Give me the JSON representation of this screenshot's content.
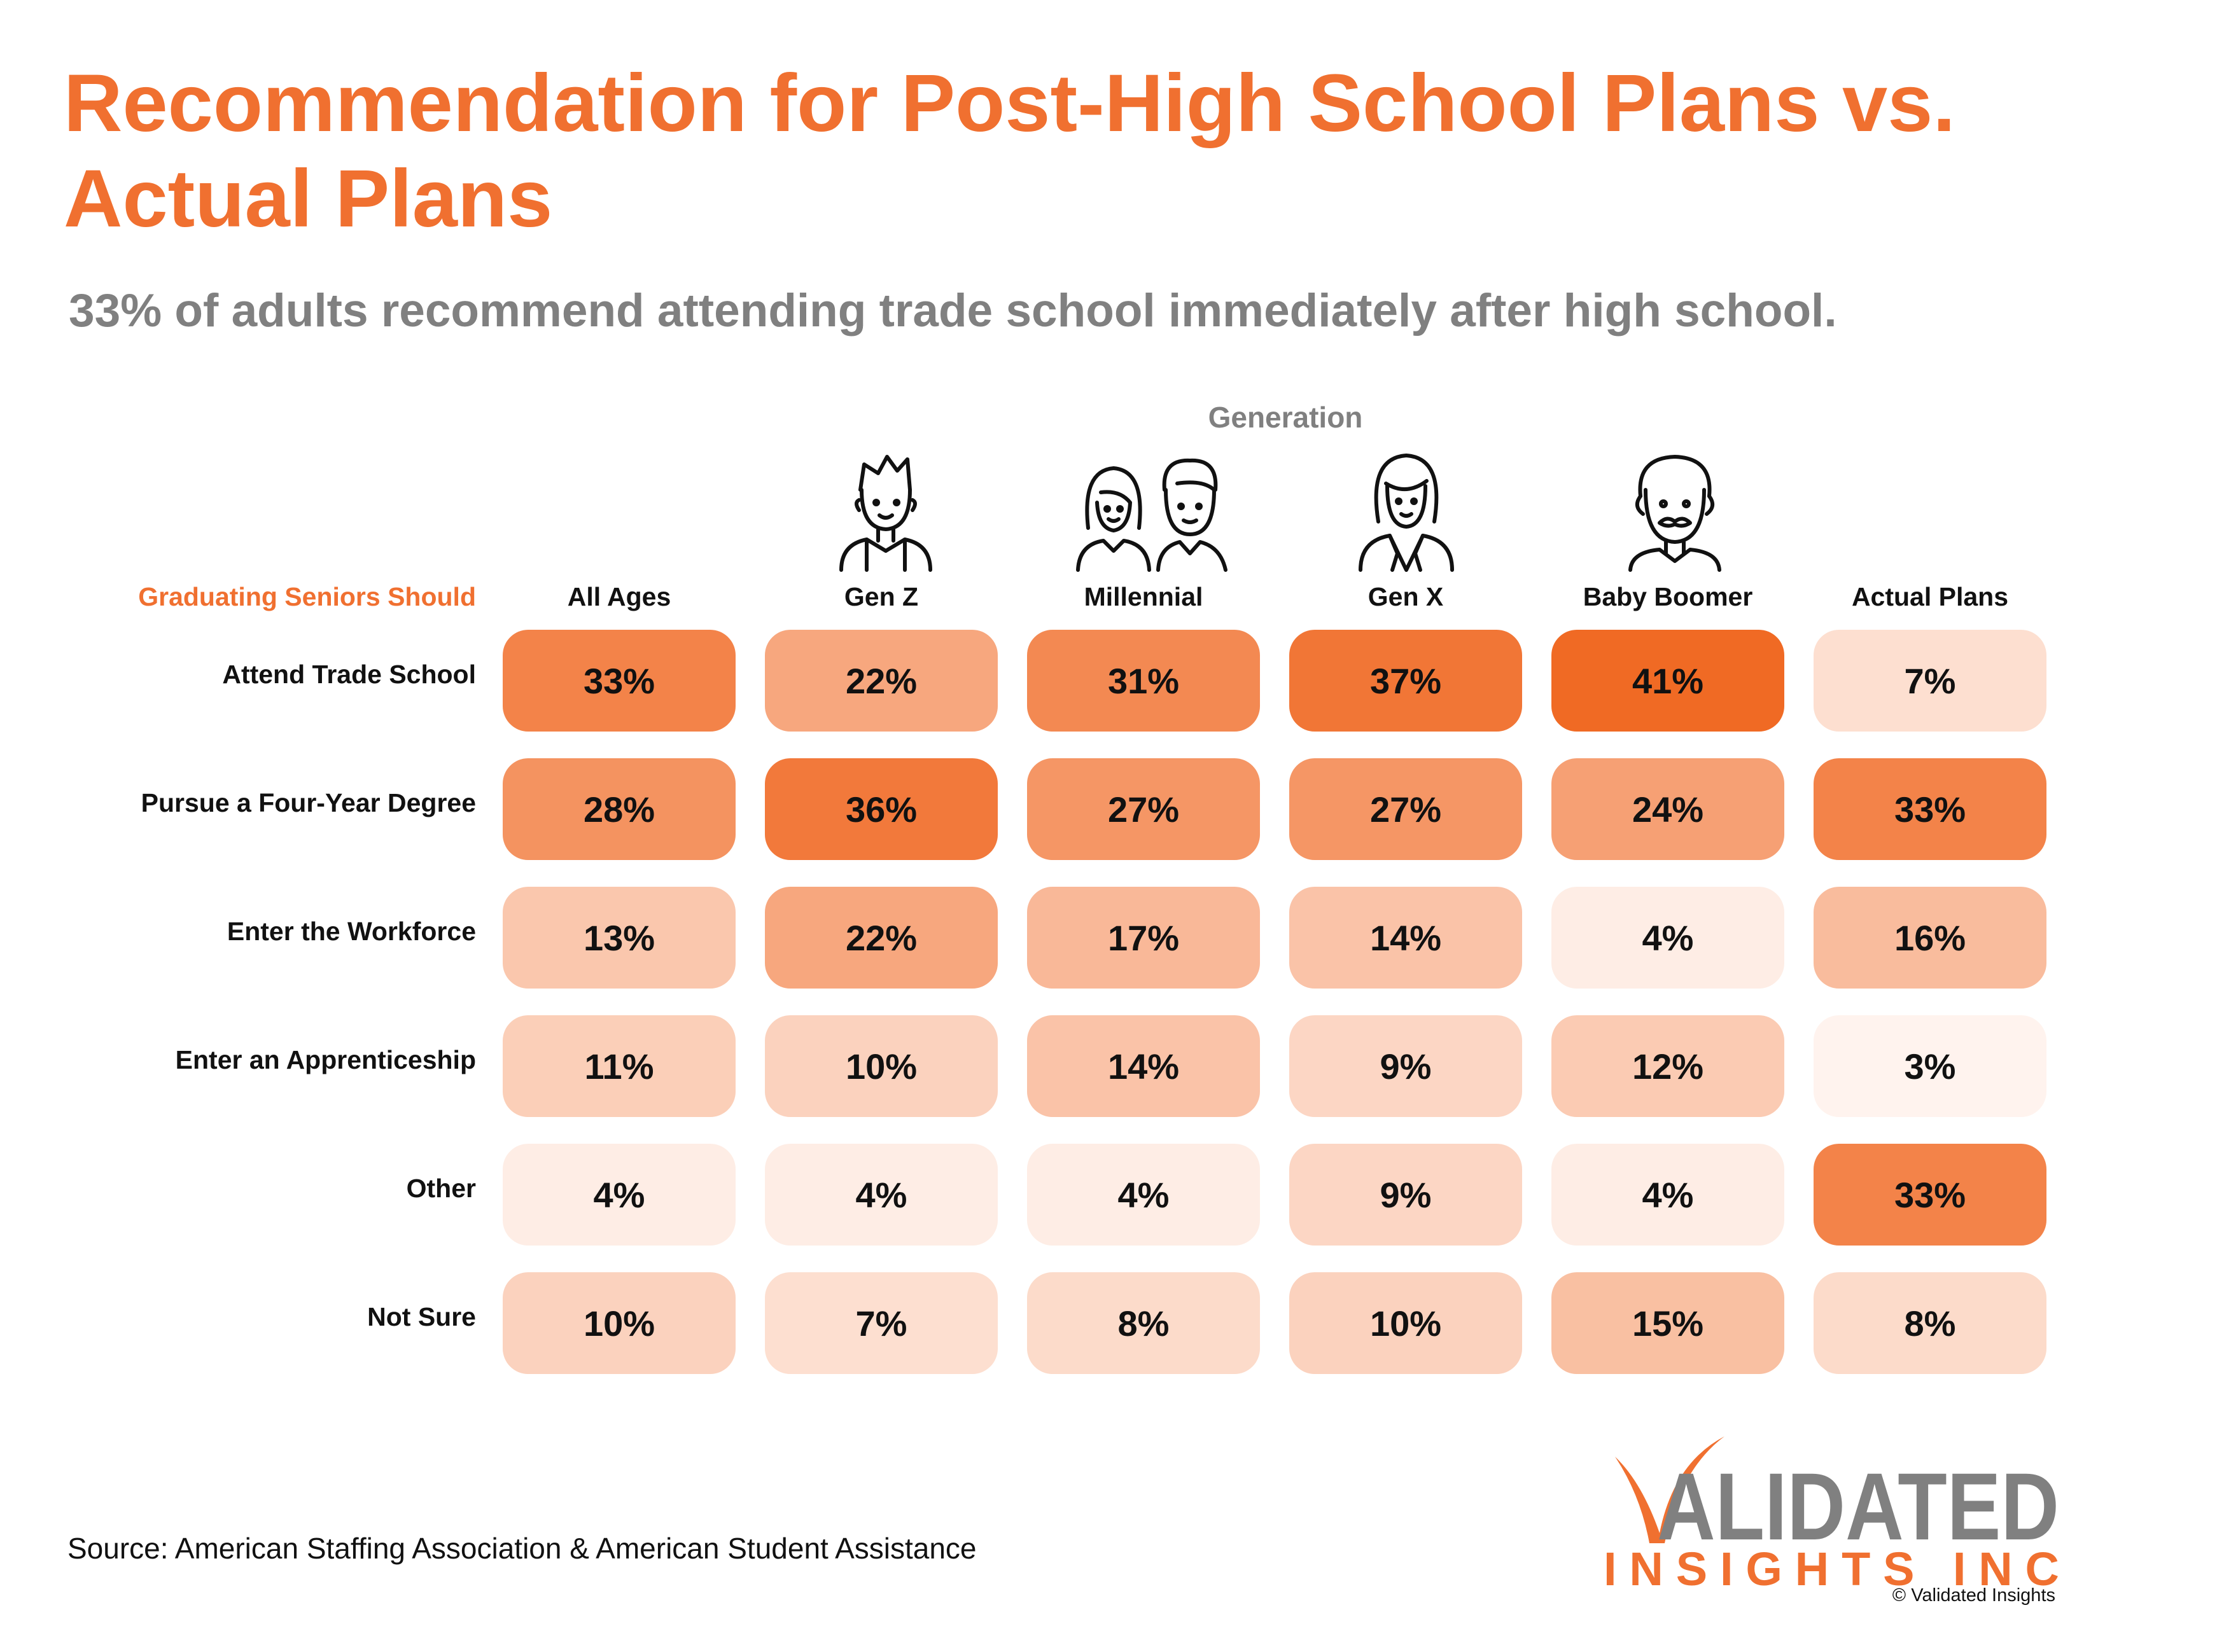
{
  "title": "Recommendation for Post-High School Plans vs. Actual Plans",
  "subtitle": "33% of adults recommend attending trade school immediately after high school.",
  "generation_label": "Generation",
  "row_header_label": "Graduating Seniors Should",
  "source": "Source: American Staffing Association & American Student Assistance",
  "copyright": "© Validated Insights",
  "logo": {
    "top_text": "VALIDATED",
    "bottom_text": "INSIGHTS INC"
  },
  "icons": [
    "gen-z-person-icon",
    "millennial-couple-icon",
    "gen-x-woman-icon",
    "baby-boomer-man-icon"
  ],
  "colors": {
    "accent": "#F07030",
    "heat_max": "#F06A24",
    "heat_min": "#FFF3EE",
    "subtitle_gray": "#808080",
    "logo_gray": "#808080"
  },
  "chart_data": {
    "type": "heatmap",
    "title": "Recommendation for Post-High School Plans vs. Actual Plans",
    "subtitle": "33% of adults recommend attending trade school immediately after high school.",
    "columns": [
      "All Ages",
      "Gen Z",
      "Millennial",
      "Gen X",
      "Baby Boomer",
      "Actual Plans"
    ],
    "rows": [
      "Attend Trade School",
      "Pursue a Four-Year Degree",
      "Enter the Workforce",
      "Enter an Apprenticeship",
      "Other",
      "Not Sure"
    ],
    "values": [
      [
        33,
        22,
        31,
        37,
        41,
        7
      ],
      [
        28,
        36,
        27,
        27,
        24,
        33
      ],
      [
        13,
        22,
        17,
        14,
        4,
        16
      ],
      [
        11,
        10,
        14,
        9,
        12,
        3
      ],
      [
        4,
        4,
        4,
        9,
        4,
        33
      ],
      [
        10,
        7,
        8,
        10,
        15,
        8
      ]
    ],
    "unit": "%"
  }
}
